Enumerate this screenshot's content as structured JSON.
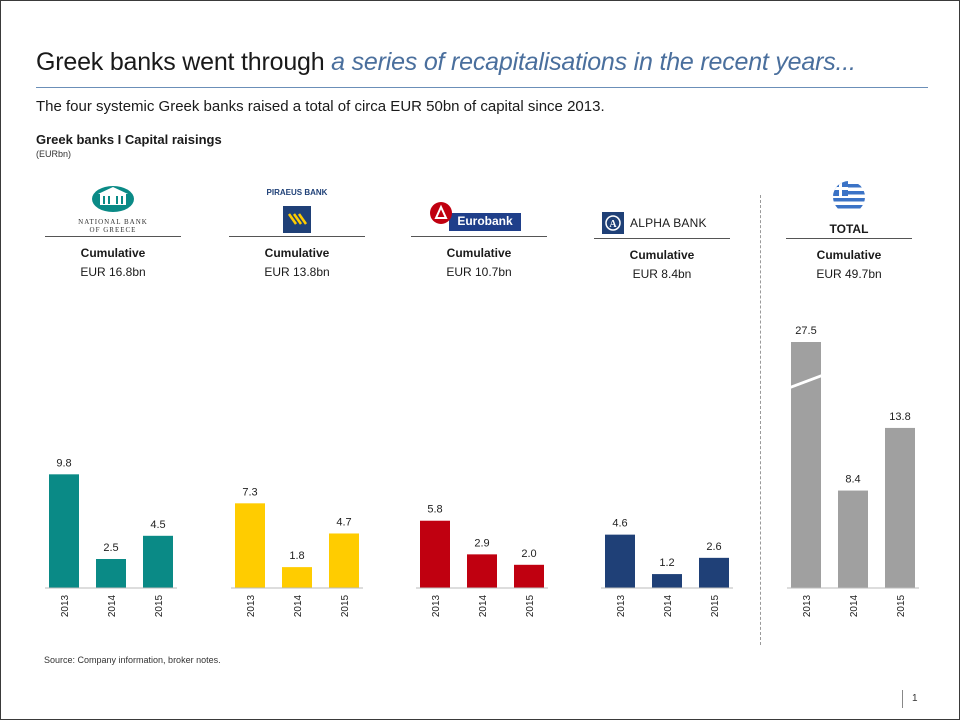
{
  "slide": {
    "title_main": "Greek banks went through ",
    "title_highlight": "a series of recapitalisations in the recent years...",
    "subtitle": "The four systemic Greek banks raised a total of circa EUR 50bn of capital since 2013.",
    "chart_title": "Greek banks I Capital raisings",
    "chart_unit": "(EURbn)",
    "source": "Source: Company information, broker notes.",
    "page_number": "1"
  },
  "banks": [
    {
      "logo_line1": "NATIONAL BANK",
      "logo_line2": "OF GREECE",
      "cumulative_label": "Cumulative",
      "cumulative_value": "EUR 16.8bn",
      "color": "#0a8a86"
    },
    {
      "logo_text": "PIRAEUS BANK",
      "cumulative_label": "Cumulative",
      "cumulative_value": "EUR 13.8bn",
      "color": "#ffcc00"
    },
    {
      "logo_text": "Eurobank",
      "cumulative_label": "Cumulative",
      "cumulative_value": "EUR 10.7bn",
      "color": "#c00010"
    },
    {
      "logo_text": "ALPHA BANK",
      "cumulative_label": "Cumulative",
      "cumulative_value": "EUR 8.4bn",
      "color": "#1f4077"
    },
    {
      "logo_text": "TOTAL",
      "cumulative_label": "Cumulative",
      "cumulative_value": "EUR 49.7bn",
      "color": "#a0a0a0"
    }
  ],
  "chart_data": {
    "type": "bar",
    "title": "Greek banks I Capital raisings",
    "unit": "(EURbn)",
    "categories": [
      "2013",
      "2014",
      "2015"
    ],
    "series": [
      {
        "name": "NATIONAL BANK OF GREECE",
        "values": [
          9.8,
          2.5,
          4.5
        ]
      },
      {
        "name": "PIRAEUS BANK",
        "values": [
          7.3,
          1.8,
          4.7
        ]
      },
      {
        "name": "Eurobank",
        "values": [
          5.8,
          2.9,
          2.0
        ]
      },
      {
        "name": "ALPHA BANK",
        "values": [
          4.6,
          1.2,
          2.6
        ]
      },
      {
        "name": "TOTAL",
        "values": [
          27.5,
          8.4,
          13.8
        ]
      }
    ],
    "value_labels": [
      [
        "9.8",
        "2.5",
        "4.5"
      ],
      [
        "7.3",
        "1.8",
        "4.7"
      ],
      [
        "5.8",
        "2.9",
        "2.0"
      ],
      [
        "4.6",
        "1.2",
        "2.6"
      ],
      [
        "27.5",
        "8.4",
        "13.8"
      ]
    ],
    "axis_break": {
      "series_index": 4,
      "category_index": 0
    }
  }
}
